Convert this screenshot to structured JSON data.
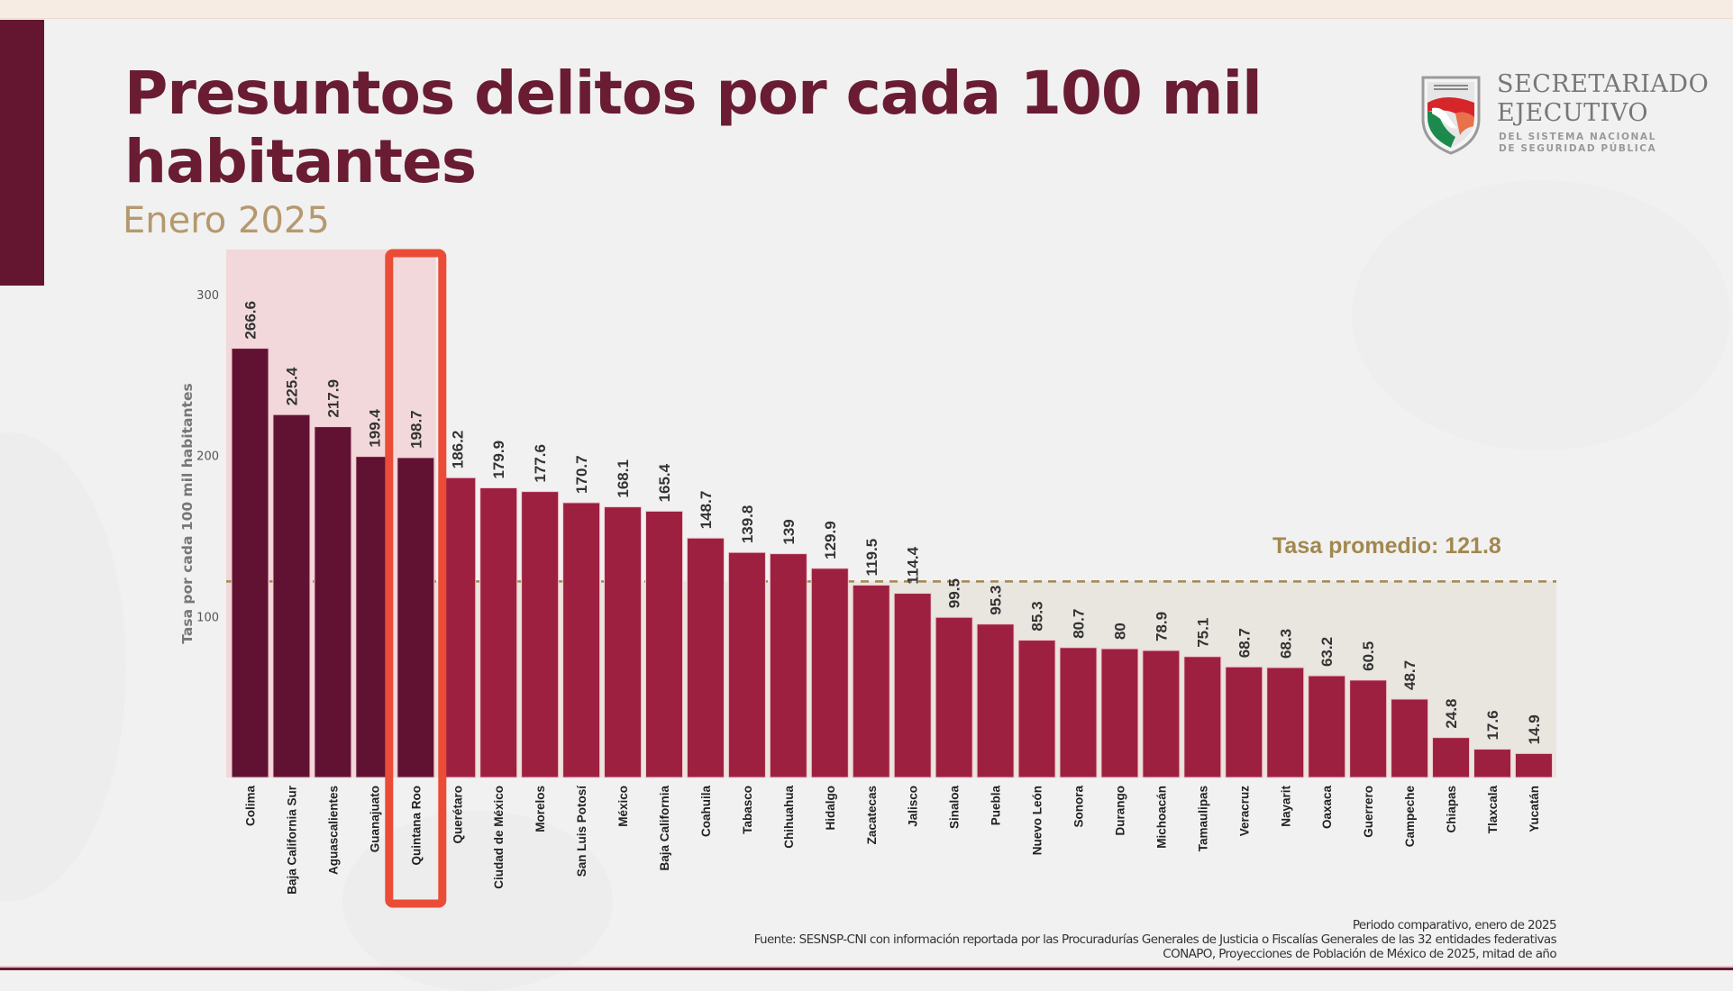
{
  "header": {
    "title": "Presuntos delitos por cada 100 mil habitantes",
    "subtitle": "Enero 2025"
  },
  "logo": {
    "line1": "SECRETARIADO",
    "line2": "EJECUTIVO",
    "line3": "DEL SISTEMA NACIONAL",
    "line4": "DE SEGURIDAD PÚBLICA",
    "icon": "shield-mexico-map-icon"
  },
  "colors": {
    "title": "#691c32",
    "subtitle": "#b5996e",
    "top_bars": "#611232",
    "other_bars": "#9d2041",
    "top_region": "#f2d8da",
    "below_avg_region": "#e9e5df",
    "average_line": "#a2884f",
    "highlight_box": "#ea4c37"
  },
  "chart_data": {
    "type": "bar",
    "title": "Presuntos delitos por cada 100 mil habitantes",
    "subtitle": "Enero 2025",
    "xlabel": "",
    "ylabel": "Tasa por cada 100 mil habitantes",
    "ylim": [
      0,
      300
    ],
    "yticks": [
      100,
      200,
      300
    ],
    "grid": false,
    "categories": [
      "Colima",
      "Baja California Sur",
      "Aguascalientes",
      "Guanajuato",
      "Quintana Roo",
      "Querétaro",
      "Ciudad de México",
      "Morelos",
      "San Luis Potosí",
      "México",
      "Baja California",
      "Coahuila",
      "Tabasco",
      "Chihuahua",
      "Hidalgo",
      "Zacatecas",
      "Jalisco",
      "Sinaloa",
      "Puebla",
      "Nuevo León",
      "Sonora",
      "Durango",
      "Michoacán",
      "Tamaulipas",
      "Veracruz",
      "Nayarit",
      "Oaxaca",
      "Guerrero",
      "Campeche",
      "Chiapas",
      "Tlaxcala",
      "Yucatán"
    ],
    "values": [
      266.6,
      225.4,
      217.9,
      199.4,
      198.7,
      186.2,
      179.9,
      177.6,
      170.7,
      168.1,
      165.4,
      148.7,
      139.8,
      139,
      129.9,
      119.5,
      114.4,
      99.5,
      95.3,
      85.3,
      80.7,
      80,
      78.9,
      75.1,
      68.7,
      68.3,
      63.2,
      60.5,
      48.7,
      24.8,
      17.6,
      14.9
    ],
    "value_labels": [
      "266.6",
      "225.4",
      "217.9",
      "199.4",
      "198.7",
      "186.2",
      "179.9",
      "177.6",
      "170.7",
      "168.1",
      "165.4",
      "148.7",
      "139.8",
      "139",
      "129.9",
      "119.5",
      "114.4",
      "99.5",
      "95.3",
      "85.3",
      "80.7",
      "80",
      "78.9",
      "75.1",
      "68.7",
      "68.3",
      "63.2",
      "60.5",
      "48.7",
      "24.8",
      "17.6",
      "14.9"
    ],
    "top_group_count": 5,
    "highlighted_category": "Quintana Roo",
    "average": {
      "value": 121.8,
      "label": "Tasa promedio: 121.8"
    }
  },
  "footer": {
    "line1": "Periodo comparativo,  enero de 2025",
    "line2": "Fuente: SESNSP-CNI con información reportada por las Procuradurías Generales de Justicia o Fiscalías Generales de las 32 entidades federativas",
    "line3": "CONAPO, Proyecciones de Población de México de 2025, mitad de año"
  }
}
